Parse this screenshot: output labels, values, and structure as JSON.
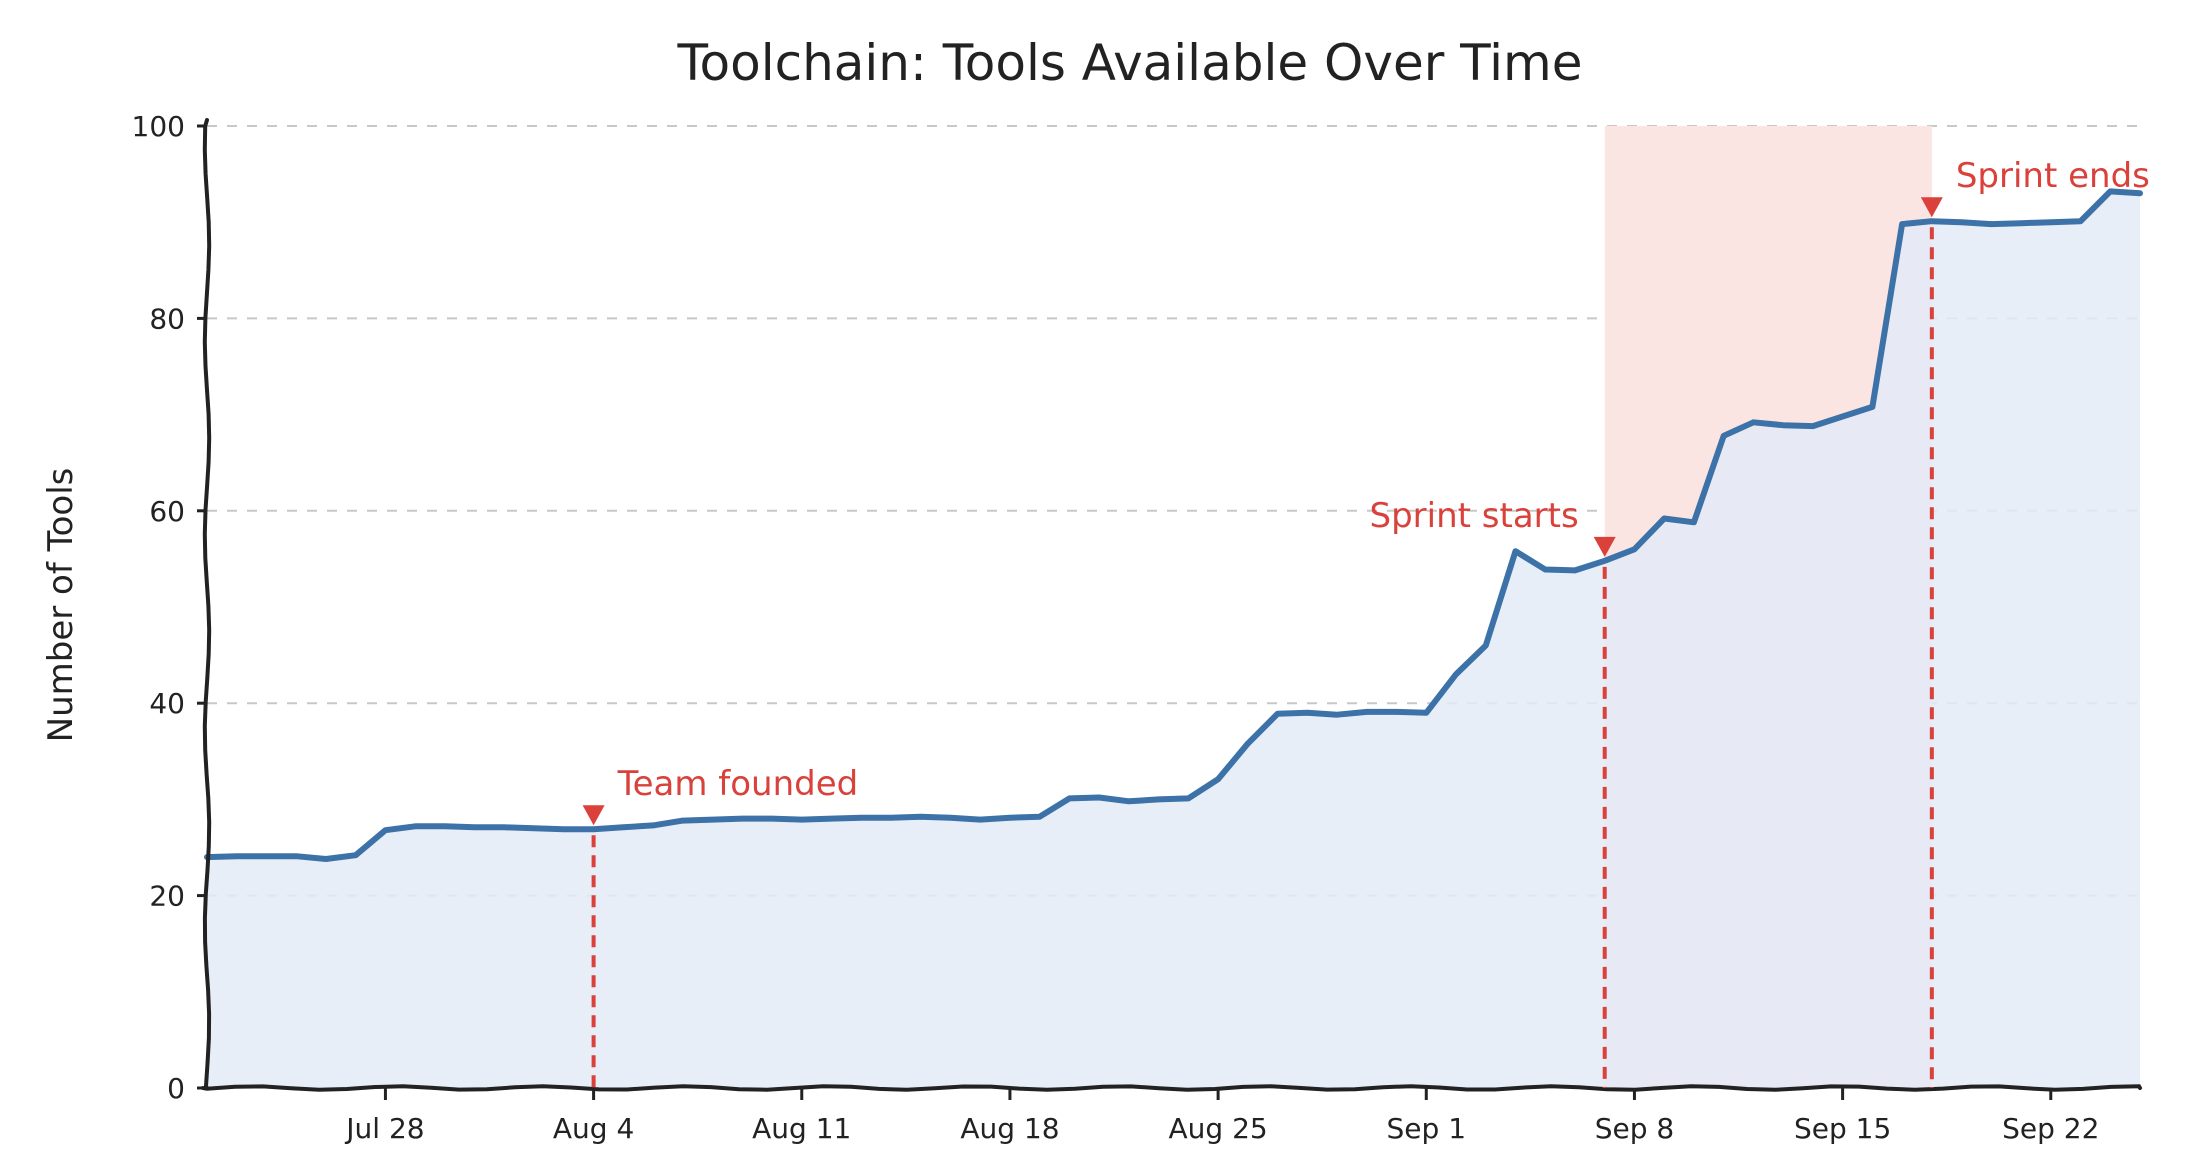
{
  "chart_data": {
    "type": "area",
    "title": "Toolchain: Tools Available Over Time",
    "xlabel": "",
    "ylabel": "Number of Tools",
    "ylim": [
      0,
      100
    ],
    "y_ticks": [
      0,
      20,
      40,
      60,
      80,
      100
    ],
    "x_range": [
      "2024-07-22",
      "2024-09-25"
    ],
    "x_ticks": [
      {
        "date": "2024-07-28",
        "label": "Jul 28"
      },
      {
        "date": "2024-08-04",
        "label": "Aug 4"
      },
      {
        "date": "2024-08-11",
        "label": "Aug 11"
      },
      {
        "date": "2024-08-18",
        "label": "Aug 18"
      },
      {
        "date": "2024-08-25",
        "label": "Aug 25"
      },
      {
        "date": "2024-09-01",
        "label": "Sep 1"
      },
      {
        "date": "2024-09-08",
        "label": "Sep 8"
      },
      {
        "date": "2024-09-15",
        "label": "Sep 15"
      },
      {
        "date": "2024-09-22",
        "label": "Sep 22"
      }
    ],
    "grid": "horizontal dashed",
    "colors": {
      "line": "#3d72a8",
      "fill": "#e3ebf7",
      "annotation": "#d9413a",
      "highlight": "#fbe5e3"
    },
    "highlight_span": [
      "2024-09-07",
      "2024-09-18"
    ],
    "series": [
      {
        "name": "",
        "points": [
          [
            "2024-07-22",
            24.0
          ],
          [
            "2024-07-23",
            24.1
          ],
          [
            "2024-07-24",
            24.1
          ],
          [
            "2024-07-25",
            24.1
          ],
          [
            "2024-07-26",
            23.8
          ],
          [
            "2024-07-27",
            24.2
          ],
          [
            "2024-07-28",
            26.8
          ],
          [
            "2024-07-29",
            27.2
          ],
          [
            "2024-07-30",
            27.2
          ],
          [
            "2024-07-31",
            27.1
          ],
          [
            "2024-08-01",
            27.1
          ],
          [
            "2024-08-02",
            27.0
          ],
          [
            "2024-08-03",
            26.9
          ],
          [
            "2024-08-04",
            26.9
          ],
          [
            "2024-08-05",
            27.1
          ],
          [
            "2024-08-06",
            27.3
          ],
          [
            "2024-08-07",
            27.8
          ],
          [
            "2024-08-08",
            27.9
          ],
          [
            "2024-08-09",
            28.0
          ],
          [
            "2024-08-10",
            28.0
          ],
          [
            "2024-08-11",
            27.9
          ],
          [
            "2024-08-12",
            28.0
          ],
          [
            "2024-08-13",
            28.1
          ],
          [
            "2024-08-14",
            28.1
          ],
          [
            "2024-08-15",
            28.2
          ],
          [
            "2024-08-16",
            28.1
          ],
          [
            "2024-08-17",
            27.9
          ],
          [
            "2024-08-18",
            28.1
          ],
          [
            "2024-08-19",
            28.2
          ],
          [
            "2024-08-20",
            30.1
          ],
          [
            "2024-08-21",
            30.2
          ],
          [
            "2024-08-22",
            29.8
          ],
          [
            "2024-08-23",
            30.0
          ],
          [
            "2024-08-24",
            30.1
          ],
          [
            "2024-08-25",
            32.1
          ],
          [
            "2024-08-26",
            35.8
          ],
          [
            "2024-08-27",
            38.9
          ],
          [
            "2024-08-28",
            39.0
          ],
          [
            "2024-08-29",
            38.8
          ],
          [
            "2024-08-30",
            39.1
          ],
          [
            "2024-08-31",
            39.1
          ],
          [
            "2024-09-01",
            39.0
          ],
          [
            "2024-09-02",
            43.0
          ],
          [
            "2024-09-03",
            46.0
          ],
          [
            "2024-09-04",
            55.8
          ],
          [
            "2024-09-05",
            53.9
          ],
          [
            "2024-09-06",
            53.8
          ],
          [
            "2024-09-07",
            54.8
          ],
          [
            "2024-09-08",
            56.0
          ],
          [
            "2024-09-09",
            59.2
          ],
          [
            "2024-09-10",
            58.8
          ],
          [
            "2024-09-11",
            67.8
          ],
          [
            "2024-09-12",
            69.2
          ],
          [
            "2024-09-13",
            68.9
          ],
          [
            "2024-09-14",
            68.8
          ],
          [
            "2024-09-15",
            69.8
          ],
          [
            "2024-09-16",
            70.8
          ],
          [
            "2024-09-17",
            89.8
          ],
          [
            "2024-09-18",
            90.1
          ],
          [
            "2024-09-19",
            90.0
          ],
          [
            "2024-09-20",
            89.8
          ],
          [
            "2024-09-21",
            89.9
          ],
          [
            "2024-09-22",
            90.0
          ],
          [
            "2024-09-23",
            90.1
          ],
          [
            "2024-09-24",
            93.2
          ],
          [
            "2024-09-25",
            93.0
          ]
        ]
      }
    ],
    "annotations": [
      {
        "date": "2024-08-04",
        "text": "Team founded",
        "y": 26.9
      },
      {
        "date": "2024-09-07",
        "text": "Sprint starts",
        "y": 54.8
      },
      {
        "date": "2024-09-18",
        "text": "Sprint ends",
        "y": 90.1
      }
    ]
  }
}
